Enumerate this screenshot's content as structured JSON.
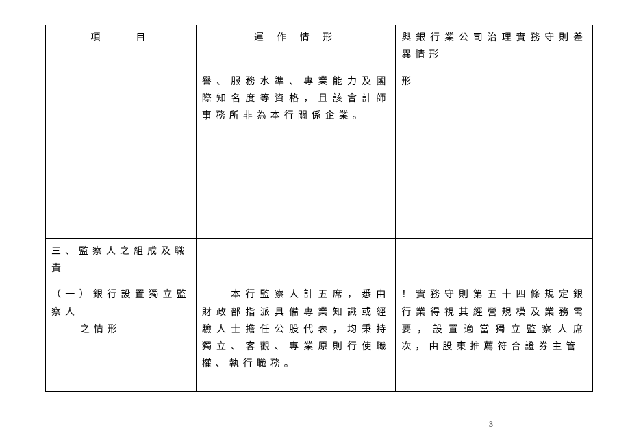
{
  "table": {
    "headers": {
      "col1": "項　　目",
      "col2": "運 作 情 形",
      "col3": "與銀行業公司治理實務守則差異情形"
    },
    "row2": {
      "col1": "",
      "col2": "譽、服務水準、專業能力及國際知名度等資格，且該會計師事務所非為本行關係企業。",
      "col3": "形"
    },
    "row3": {
      "col1": "三、監察人之組成及職責",
      "col2": "",
      "col3": ""
    },
    "row4": {
      "col1_line1": "（一）銀行設置獨立監察人",
      "col1_line2": "之情形",
      "col2": "　　本行監察人計五席，悉由財政部指派具備專業知識或經驗人士擔任公股代表，均秉持獨立、客觀、專業原則行使職權、執行職務。",
      "col3": "！實務守則第五十四條規定銀行業得視其經營規模及業務需要，設置適當獨立監察人席次，由股東推薦符合證券主管"
    }
  },
  "page_number": "3",
  "colors": {
    "text": "#000000",
    "background": "#ffffff",
    "border": "#000000"
  },
  "fonts": {
    "body_size": 14,
    "page_num_size": 12
  }
}
